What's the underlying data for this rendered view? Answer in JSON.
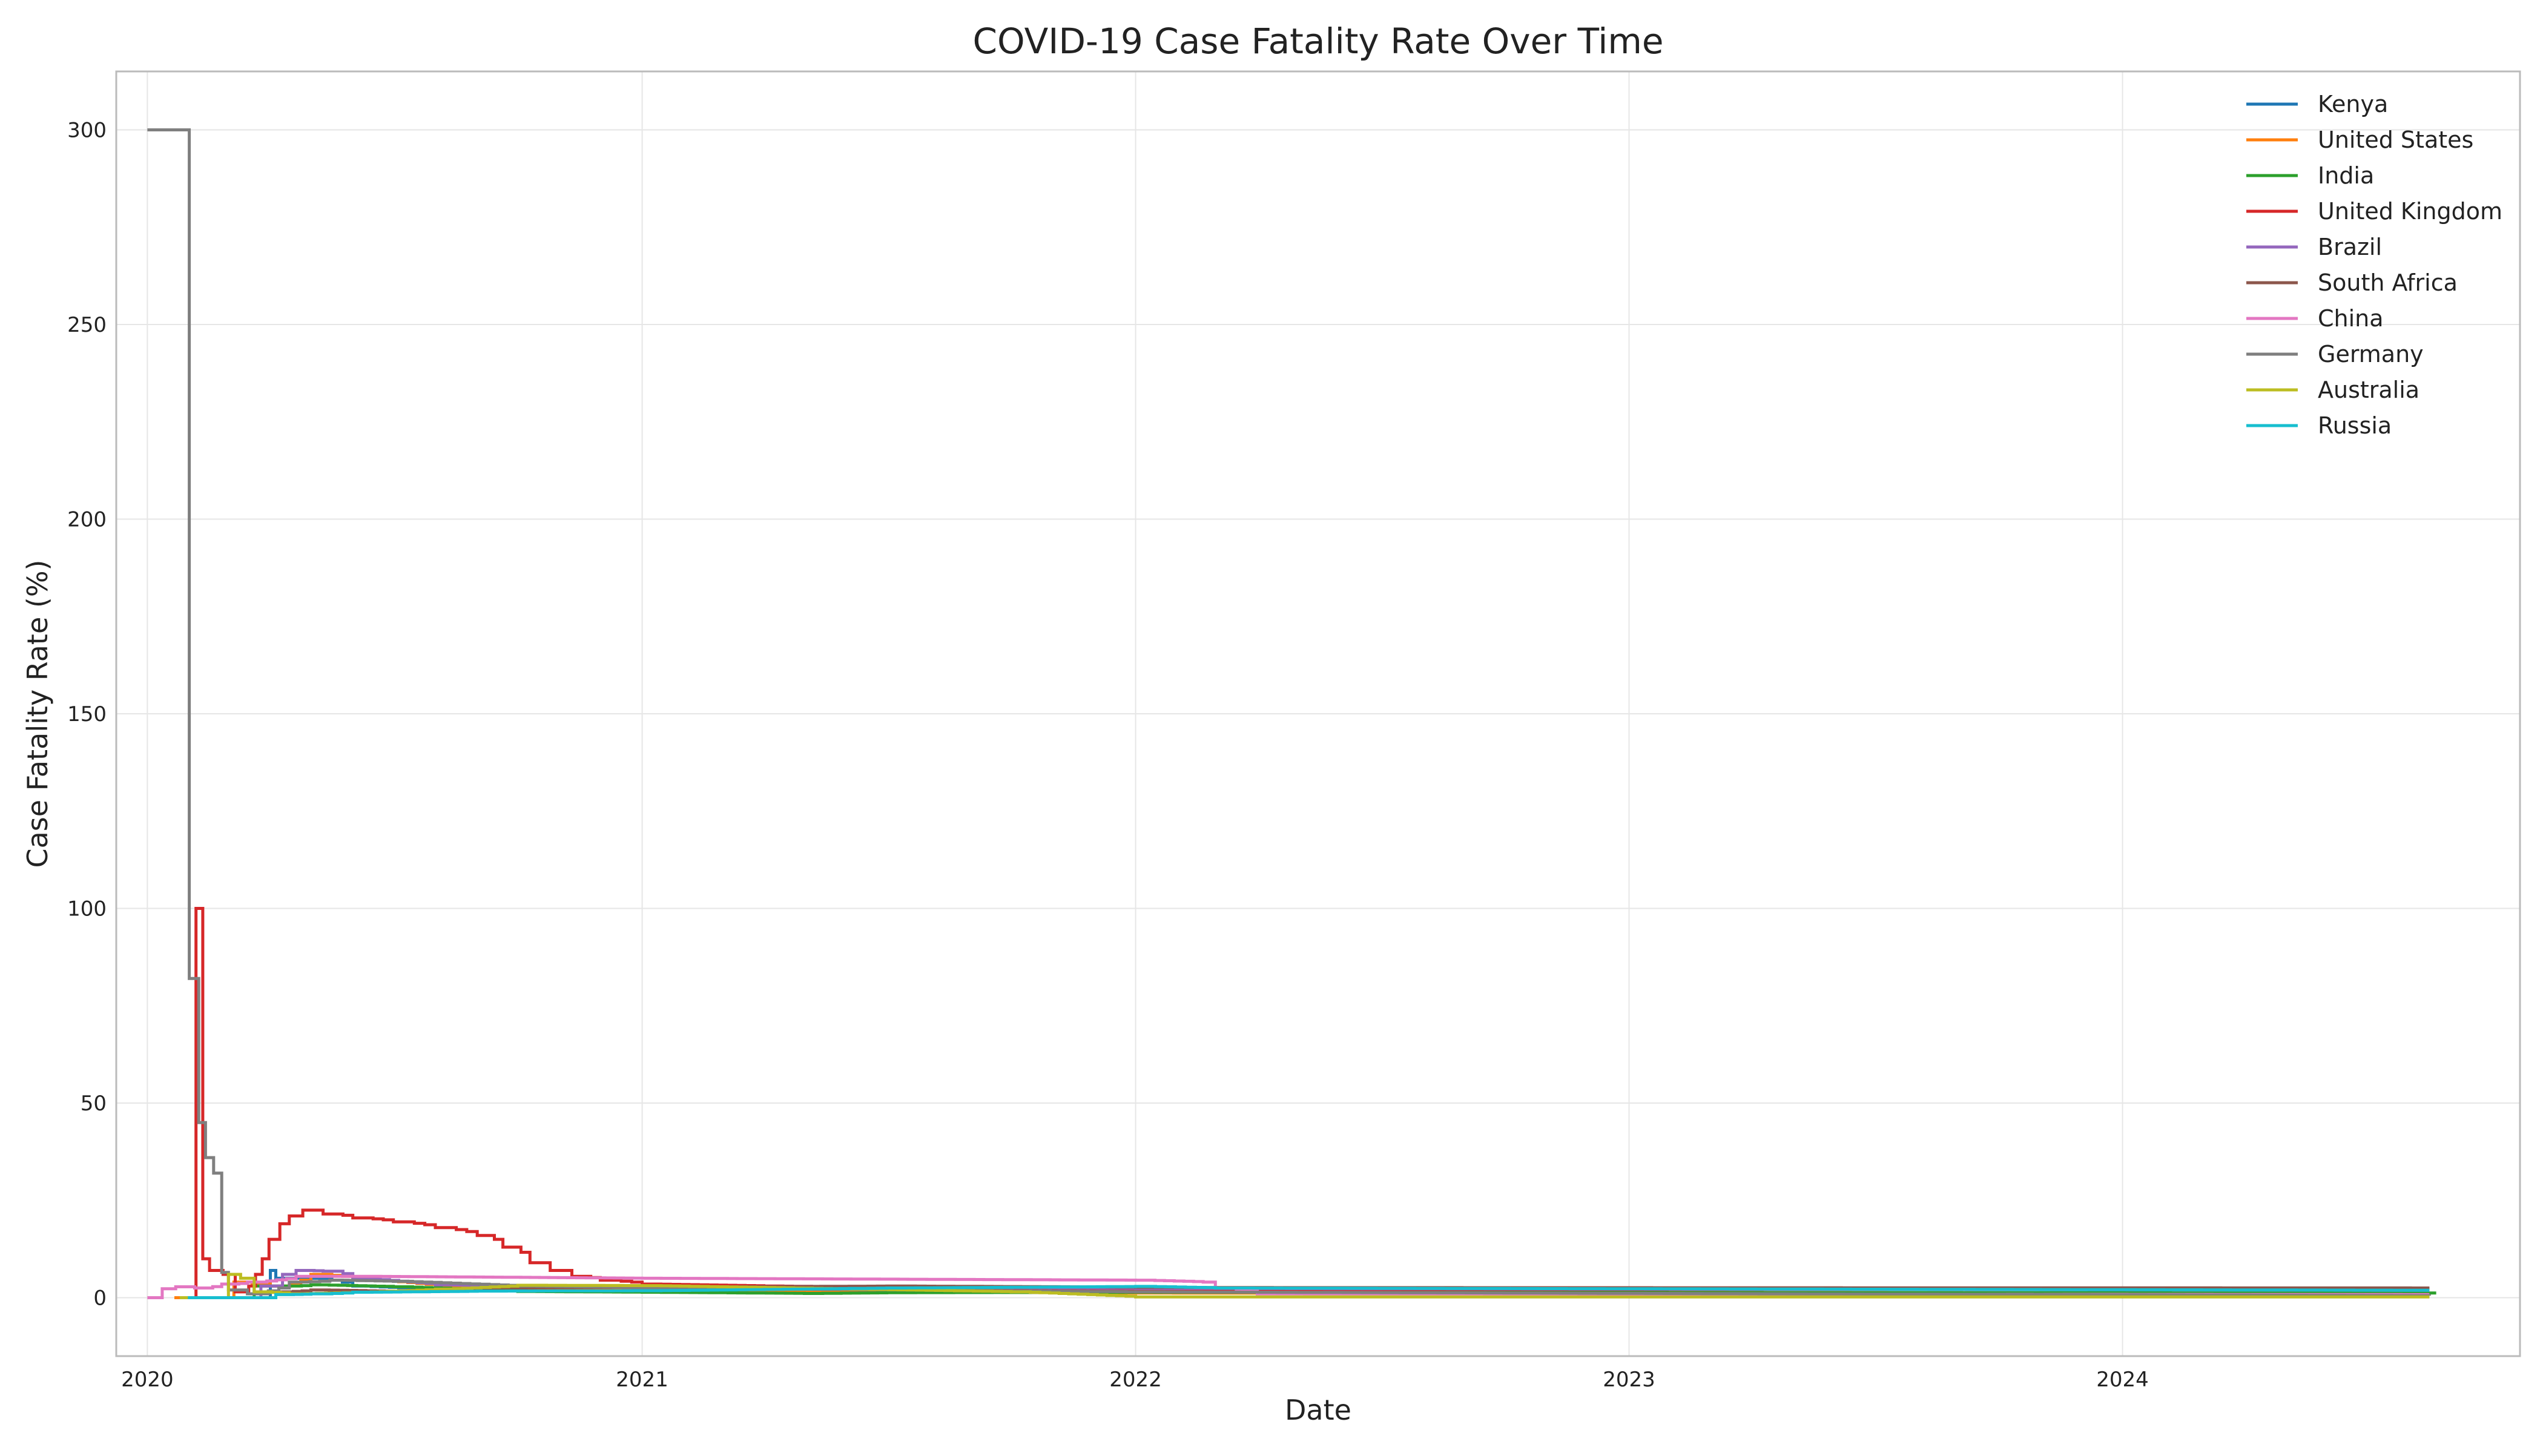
{
  "chart_data": {
    "type": "line",
    "title": "COVID-19 Case Fatality Rate Over Time",
    "xlabel": "Date",
    "ylabel": "Case Fatality Rate (%)",
    "x_ticks": [
      "2020",
      "2021",
      "2022",
      "2023",
      "2024"
    ],
    "y_ticks": [
      0,
      50,
      100,
      150,
      200,
      250,
      300
    ],
    "xlim": [
      "2019-12-09",
      "2024-10-21"
    ],
    "ylim": [
      -15,
      315
    ],
    "grid": true,
    "legend_position": "top-right",
    "series": [
      {
        "name": "Kenya",
        "color": "#1f77b4",
        "points": [
          [
            "2020-03-13",
            0
          ],
          [
            "2020-03-26",
            0
          ],
          [
            "2020-04-01",
            7
          ],
          [
            "2020-04-05",
            5
          ],
          [
            "2020-04-15",
            5
          ],
          [
            "2020-05-01",
            5
          ],
          [
            "2020-06-01",
            3
          ],
          [
            "2020-08-01",
            2
          ],
          [
            "2021-01-01",
            1.8
          ],
          [
            "2022-01-01",
            2.0
          ],
          [
            "2022-03-01",
            2.3
          ],
          [
            "2024-08-15",
            2.3
          ]
        ]
      },
      {
        "name": "United States",
        "color": "#ff7f0e",
        "points": [
          [
            "2020-01-21",
            0
          ],
          [
            "2020-02-29",
            0
          ],
          [
            "2020-03-05",
            4
          ],
          [
            "2020-04-01",
            3
          ],
          [
            "2020-05-01",
            6
          ],
          [
            "2020-06-01",
            5
          ],
          [
            "2020-08-01",
            3
          ],
          [
            "2021-01-01",
            1.8
          ],
          [
            "2022-01-01",
            1.2
          ],
          [
            "2024-08-15",
            1.0
          ]
        ]
      },
      {
        "name": "India",
        "color": "#2ca02c",
        "points": [
          [
            "2020-01-30",
            0
          ],
          [
            "2020-03-12",
            0
          ],
          [
            "2020-03-20",
            3
          ],
          [
            "2020-04-10",
            3
          ],
          [
            "2020-05-01",
            3.3
          ],
          [
            "2020-07-01",
            2.8
          ],
          [
            "2020-10-01",
            1.6
          ],
          [
            "2021-01-01",
            1.4
          ],
          [
            "2021-05-01",
            1.1
          ],
          [
            "2021-07-01",
            1.3
          ],
          [
            "2022-01-01",
            1.4
          ],
          [
            "2024-08-20",
            1.2
          ]
        ]
      },
      {
        "name": "United Kingdom",
        "color": "#d62728",
        "points": [
          [
            "2020-02-01",
            0
          ],
          [
            "2020-02-06",
            100
          ],
          [
            "2020-02-11",
            10
          ],
          [
            "2020-02-16",
            7
          ],
          [
            "2020-02-26",
            6
          ],
          [
            "2020-03-06",
            1.5
          ],
          [
            "2020-03-16",
            3
          ],
          [
            "2020-03-21",
            6
          ],
          [
            "2020-03-26",
            10
          ],
          [
            "2020-03-31",
            15
          ],
          [
            "2020-04-08",
            19
          ],
          [
            "2020-04-15",
            21
          ],
          [
            "2020-04-25",
            22.5
          ],
          [
            "2020-05-10",
            21.5
          ],
          [
            "2020-06-01",
            20.5
          ],
          [
            "2020-07-01",
            19.5
          ],
          [
            "2020-08-01",
            18
          ],
          [
            "2020-09-01",
            16
          ],
          [
            "2020-09-20",
            13
          ],
          [
            "2020-10-10",
            9
          ],
          [
            "2020-10-25",
            7
          ],
          [
            "2020-11-10",
            5.5
          ],
          [
            "2020-12-01",
            4.5
          ],
          [
            "2021-01-01",
            3.5
          ],
          [
            "2021-04-01",
            3.0
          ],
          [
            "2022-01-01",
            1.8
          ],
          [
            "2022-03-01",
            2.1
          ],
          [
            "2024-08-15",
            2.1
          ]
        ]
      },
      {
        "name": "Brazil",
        "color": "#9467bd",
        "points": [
          [
            "2020-02-26",
            0
          ],
          [
            "2020-03-18",
            0
          ],
          [
            "2020-03-25",
            3
          ],
          [
            "2020-04-10",
            6
          ],
          [
            "2020-04-20",
            7
          ],
          [
            "2020-05-10",
            6.8
          ],
          [
            "2020-06-01",
            5
          ],
          [
            "2020-08-01",
            3.3
          ],
          [
            "2021-01-01",
            2.5
          ],
          [
            "2021-07-01",
            2.8
          ],
          [
            "2022-01-01",
            2.4
          ],
          [
            "2024-08-15",
            1.9
          ]
        ]
      },
      {
        "name": "South Africa",
        "color": "#8c564b",
        "points": [
          [
            "2020-03-05",
            0
          ],
          [
            "2020-03-27",
            0
          ],
          [
            "2020-04-05",
            1.5
          ],
          [
            "2020-05-01",
            2.0
          ],
          [
            "2020-07-01",
            1.6
          ],
          [
            "2020-09-01",
            2.5
          ],
          [
            "2021-01-01",
            2.7
          ],
          [
            "2021-07-01",
            3.0
          ],
          [
            "2022-01-01",
            2.7
          ],
          [
            "2022-03-01",
            2.6
          ],
          [
            "2024-08-15",
            2.5
          ]
        ]
      },
      {
        "name": "China",
        "color": "#e377c2",
        "points": [
          [
            "2020-01-01",
            0
          ],
          [
            "2020-01-10",
            0
          ],
          [
            "2020-01-12",
            2.3
          ],
          [
            "2020-01-22",
            2.8
          ],
          [
            "2020-02-05",
            2.5
          ],
          [
            "2020-02-25",
            3.5
          ],
          [
            "2020-03-15",
            4.0
          ],
          [
            "2020-04-20",
            5.5
          ],
          [
            "2020-06-01",
            5.5
          ],
          [
            "2021-01-01",
            5.0
          ],
          [
            "2022-01-01",
            4.5
          ],
          [
            "2022-02-20",
            4.0
          ],
          [
            "2022-03-01",
            2.5
          ],
          [
            "2022-04-01",
            1.0
          ],
          [
            "2024-08-15",
            0.8
          ]
        ]
      },
      {
        "name": "Germany",
        "color": "#7f7f7f",
        "points": [
          [
            "2020-01-01",
            300
          ],
          [
            "2020-01-27",
            300
          ],
          [
            "2020-02-01",
            82
          ],
          [
            "2020-02-08",
            45
          ],
          [
            "2020-02-13",
            36
          ],
          [
            "2020-02-19",
            32
          ],
          [
            "2020-02-25",
            6.5
          ],
          [
            "2020-03-01",
            2
          ],
          [
            "2020-03-15",
            1
          ],
          [
            "2020-04-15",
            4
          ],
          [
            "2020-05-15",
            4.5
          ],
          [
            "2020-07-01",
            4.2
          ],
          [
            "2020-10-01",
            3.0
          ],
          [
            "2021-01-01",
            2.5
          ],
          [
            "2022-01-01",
            1.5
          ],
          [
            "2024-08-15",
            0.5
          ]
        ]
      },
      {
        "name": "Australia",
        "color": "#bcbd22",
        "points": [
          [
            "2020-01-25",
            0
          ],
          [
            "2020-02-28",
            0
          ],
          [
            "2020-03-01",
            6
          ],
          [
            "2020-03-10",
            5
          ],
          [
            "2020-03-20",
            1.5
          ],
          [
            "2020-04-15",
            1.0
          ],
          [
            "2020-06-01",
            1.4
          ],
          [
            "2020-08-01",
            2.2
          ],
          [
            "2020-10-01",
            3.2
          ],
          [
            "2021-01-01",
            3.1
          ],
          [
            "2021-10-01",
            1.5
          ],
          [
            "2022-01-01",
            0.2
          ],
          [
            "2024-08-15",
            0.2
          ]
        ]
      },
      {
        "name": "Russia",
        "color": "#17becf",
        "points": [
          [
            "2020-01-31",
            0
          ],
          [
            "2020-04-01",
            0
          ],
          [
            "2020-04-05",
            0.8
          ],
          [
            "2020-05-01",
            1.0
          ],
          [
            "2020-06-01",
            1.4
          ],
          [
            "2020-09-01",
            1.7
          ],
          [
            "2021-01-01",
            1.8
          ],
          [
            "2021-07-01",
            2.5
          ],
          [
            "2022-01-01",
            2.9
          ],
          [
            "2022-03-01",
            2.5
          ],
          [
            "2024-08-15",
            1.9
          ]
        ]
      }
    ]
  }
}
